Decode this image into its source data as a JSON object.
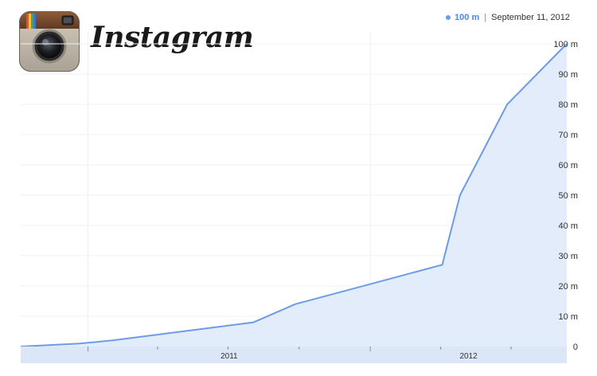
{
  "brand": {
    "wordmark": "Instagram"
  },
  "readout": {
    "value": "100 m",
    "date": "September 11, 2012"
  },
  "chart_data": {
    "type": "area",
    "title": "",
    "xlabel": "",
    "ylabel": "",
    "x_ticks": [
      "2011",
      "2012"
    ],
    "y_ticks": [
      "0",
      "10 m",
      "20 m",
      "30 m",
      "40 m",
      "50 m",
      "60 m",
      "70 m",
      "80 m",
      "90 m",
      "100 m"
    ],
    "ylim": [
      0,
      100
    ],
    "xlim": [
      "2010-10-06",
      "2012-09-11"
    ],
    "grid": true,
    "color": "#6d9be6",
    "fill_color": "#e3ecfb",
    "series": [
      {
        "x": [
          "2010-10-06",
          "2010-12-21",
          "2011-02-01",
          "2011-08-03",
          "2011-09-26",
          "2012-04-03",
          "2012-04-26",
          "2012-06-26",
          "2012-09-11"
        ],
        "y": [
          0,
          1,
          2,
          8,
          14,
          27,
          50,
          80,
          100
        ]
      }
    ]
  }
}
